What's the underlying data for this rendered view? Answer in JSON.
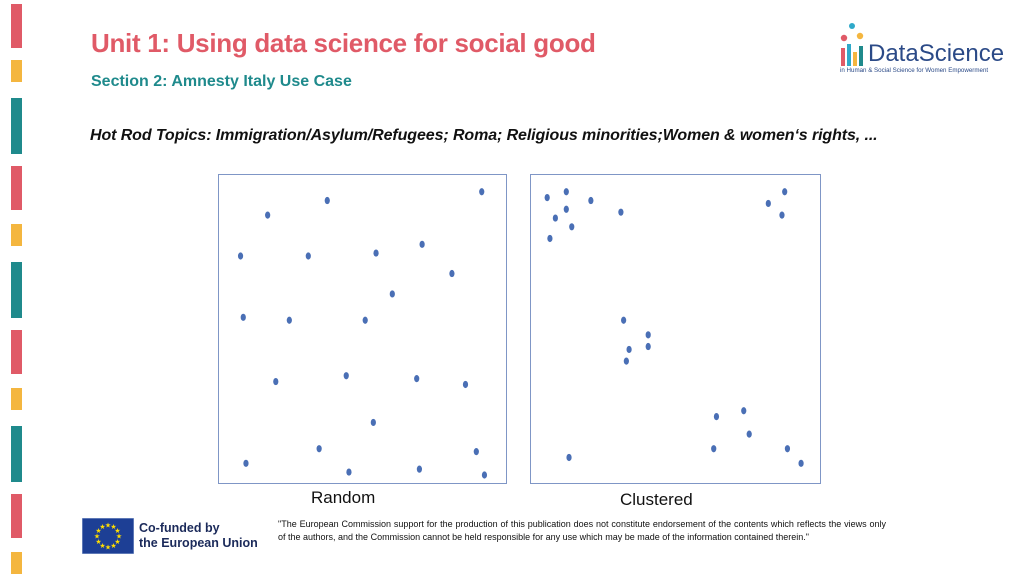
{
  "header": {
    "title": "Unit 1: Using data science for social good",
    "subtitle": "Section 2: Amnesty Italy Use Case",
    "title_color": "#e05a67",
    "subtitle_color": "#1f8a8c"
  },
  "logo": {
    "word_prefix": "Data",
    "word_suffix": "Science",
    "tagline": "in Human & Social Science for Women Empowerment"
  },
  "topics": "Hot Rod Topics: Immigration/Asylum/Refugees; Roma; Religious minorities;Women & women‘s rights, ...",
  "colors": {
    "stripe_pink": "#e05a67",
    "stripe_yellow": "#f4b63f",
    "stripe_teal": "#1f8a8c",
    "dot": "#4a6fb5",
    "frame": "#7f96c6"
  },
  "plots": {
    "random": {
      "caption": "Random",
      "points": [
        [
          0.94,
          0.03
        ],
        [
          0.37,
          0.06
        ],
        [
          0.15,
          0.11
        ],
        [
          0.72,
          0.21
        ],
        [
          0.05,
          0.25
        ],
        [
          0.3,
          0.25
        ],
        [
          0.55,
          0.24
        ],
        [
          0.83,
          0.31
        ],
        [
          0.61,
          0.38
        ],
        [
          0.06,
          0.46
        ],
        [
          0.23,
          0.47
        ],
        [
          0.51,
          0.47
        ],
        [
          0.18,
          0.68
        ],
        [
          0.44,
          0.66
        ],
        [
          0.7,
          0.67
        ],
        [
          0.88,
          0.69
        ],
        [
          0.54,
          0.82
        ],
        [
          0.34,
          0.91
        ],
        [
          0.92,
          0.92
        ],
        [
          0.07,
          0.96
        ],
        [
          0.45,
          0.99
        ],
        [
          0.71,
          0.98
        ],
        [
          0.95,
          1.0
        ]
      ]
    },
    "clustered": {
      "caption": "Clustered",
      "points": [
        [
          0.03,
          0.05
        ],
        [
          0.1,
          0.03
        ],
        [
          0.19,
          0.06
        ],
        [
          0.1,
          0.09
        ],
        [
          0.06,
          0.12
        ],
        [
          0.12,
          0.15
        ],
        [
          0.04,
          0.19
        ],
        [
          0.3,
          0.1
        ],
        [
          0.84,
          0.07
        ],
        [
          0.9,
          0.03
        ],
        [
          0.89,
          0.11
        ],
        [
          0.31,
          0.47
        ],
        [
          0.4,
          0.56
        ],
        [
          0.32,
          0.61
        ],
        [
          0.33,
          0.57
        ],
        [
          0.4,
          0.52
        ],
        [
          0.65,
          0.8
        ],
        [
          0.75,
          0.78
        ],
        [
          0.77,
          0.86
        ],
        [
          0.64,
          0.91
        ],
        [
          0.91,
          0.91
        ],
        [
          0.96,
          0.96
        ],
        [
          0.11,
          0.94
        ]
      ]
    }
  },
  "footer": {
    "cofunded_line1": "Co-funded by",
    "cofunded_line2": "the European Union",
    "disclaimer": "\"The European Commission support for the production of this publication does not constitute endorsement of the contents which reflects the views only of the authors, and the Commission cannot be held responsible for any use which may be made of the information contained therein.\""
  }
}
